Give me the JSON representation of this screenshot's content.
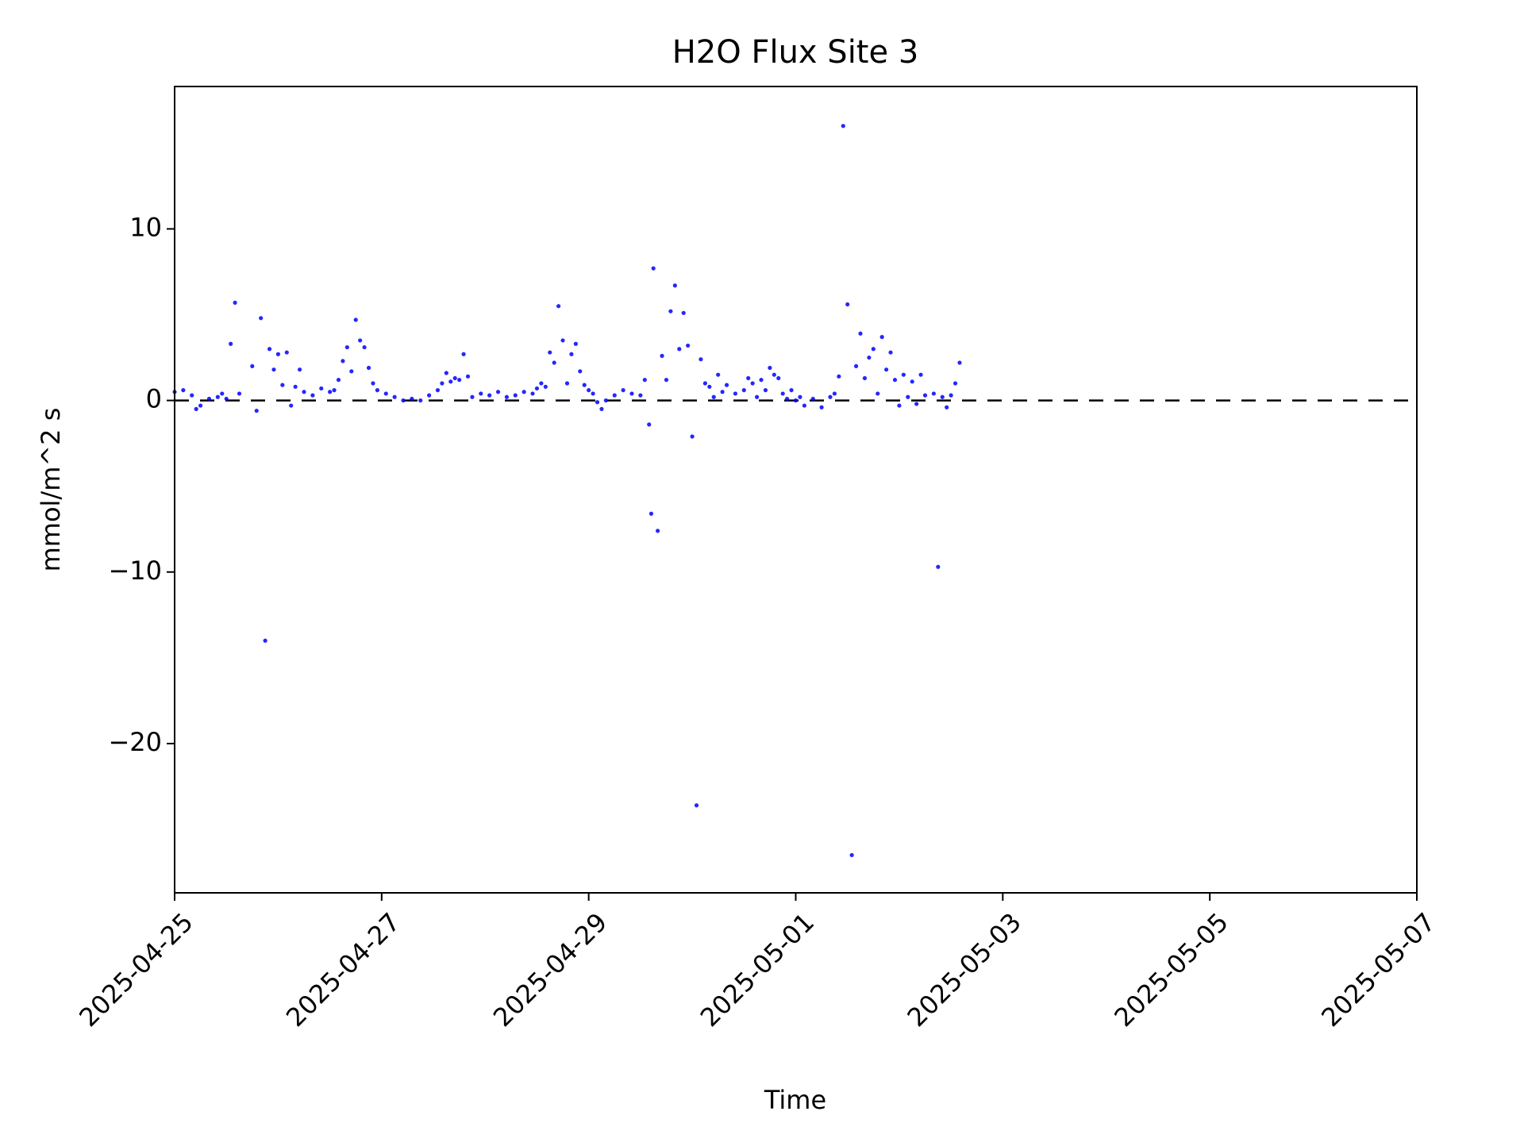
{
  "chart_data": {
    "type": "scatter",
    "title": "H2O Flux Site 3",
    "x_label": "Time",
    "y_label": "mmol/m^2 s",
    "xlim": [
      "2025-04-25T00:00",
      "2025-05-07T00:00"
    ],
    "xticks": [
      "2025-04-25",
      "2025-04-27",
      "2025-04-29",
      "2025-05-01",
      "2025-05-03",
      "2025-05-05",
      "2025-05-07"
    ],
    "ylim": [
      -28.7,
      18.3
    ],
    "yticks": [
      {
        "value": -20,
        "label": "−20"
      },
      {
        "value": -10,
        "label": "−10"
      },
      0,
      10
    ],
    "hline": 0,
    "hline_color": "#000000",
    "grid": false,
    "series": [
      {
        "color": "#0000ff",
        "x": [
          "2025-04-25T00:00",
          "2025-04-25T02:00",
          "2025-04-25T04:00",
          "2025-04-25T05:00",
          "2025-04-25T06:00",
          "2025-04-25T08:00",
          "2025-04-25T10:00",
          "2025-04-25T11:00",
          "2025-04-25T12:00",
          "2025-04-25T13:00",
          "2025-04-25T14:00",
          "2025-04-25T15:00",
          "2025-04-25T18:00",
          "2025-04-25T19:00",
          "2025-04-25T20:00",
          "2025-04-25T21:00",
          "2025-04-25T22:00",
          "2025-04-25T23:00",
          "2025-04-26T00:00",
          "2025-04-26T01:00",
          "2025-04-26T02:00",
          "2025-04-26T03:00",
          "2025-04-26T04:00",
          "2025-04-26T05:00",
          "2025-04-26T06:00",
          "2025-04-26T08:00",
          "2025-04-26T10:00",
          "2025-04-26T12:00",
          "2025-04-26T13:00",
          "2025-04-26T14:00",
          "2025-04-26T15:00",
          "2025-04-26T16:00",
          "2025-04-26T17:00",
          "2025-04-26T18:00",
          "2025-04-26T19:00",
          "2025-04-26T20:00",
          "2025-04-26T21:00",
          "2025-04-26T22:00",
          "2025-04-26T23:00",
          "2025-04-27T01:00",
          "2025-04-27T03:00",
          "2025-04-27T05:00",
          "2025-04-27T07:00",
          "2025-04-27T09:00",
          "2025-04-27T11:00",
          "2025-04-27T13:00",
          "2025-04-27T14:00",
          "2025-04-27T15:00",
          "2025-04-27T16:00",
          "2025-04-27T17:00",
          "2025-04-27T18:00",
          "2025-04-27T19:00",
          "2025-04-27T20:00",
          "2025-04-27T21:00",
          "2025-04-27T23:00",
          "2025-04-28T01:00",
          "2025-04-28T03:00",
          "2025-04-28T05:00",
          "2025-04-28T07:00",
          "2025-04-28T09:00",
          "2025-04-28T11:00",
          "2025-04-28T12:00",
          "2025-04-28T13:00",
          "2025-04-28T14:00",
          "2025-04-28T15:00",
          "2025-04-28T16:00",
          "2025-04-28T17:00",
          "2025-04-28T18:00",
          "2025-04-28T19:00",
          "2025-04-28T20:00",
          "2025-04-28T21:00",
          "2025-04-28T22:00",
          "2025-04-28T23:00",
          "2025-04-29T00:00",
          "2025-04-29T01:00",
          "2025-04-29T02:00",
          "2025-04-29T03:00",
          "2025-04-29T04:00",
          "2025-04-29T06:00",
          "2025-04-29T08:00",
          "2025-04-29T10:00",
          "2025-04-29T12:00",
          "2025-04-29T13:00",
          "2025-04-29T14:00",
          "2025-04-29T14:30",
          "2025-04-29T15:00",
          "2025-04-29T16:00",
          "2025-04-29T17:00",
          "2025-04-29T18:00",
          "2025-04-29T19:00",
          "2025-04-29T20:00",
          "2025-04-29T21:00",
          "2025-04-29T22:00",
          "2025-04-29T23:00",
          "2025-04-30T00:00",
          "2025-04-30T01:00",
          "2025-04-30T02:00",
          "2025-04-30T03:00",
          "2025-04-30T04:00",
          "2025-04-30T05:00",
          "2025-04-30T06:00",
          "2025-04-30T07:00",
          "2025-04-30T08:00",
          "2025-04-30T10:00",
          "2025-04-30T12:00",
          "2025-04-30T13:00",
          "2025-04-30T14:00",
          "2025-04-30T15:00",
          "2025-04-30T16:00",
          "2025-04-30T17:00",
          "2025-04-30T18:00",
          "2025-04-30T19:00",
          "2025-04-30T20:00",
          "2025-04-30T21:00",
          "2025-04-30T22:00",
          "2025-04-30T23:00",
          "2025-05-01T00:00",
          "2025-05-01T01:00",
          "2025-05-01T02:00",
          "2025-05-01T04:00",
          "2025-05-01T06:00",
          "2025-05-01T08:00",
          "2025-05-01T09:00",
          "2025-05-01T10:00",
          "2025-05-01T11:00",
          "2025-05-01T12:00",
          "2025-05-01T13:00",
          "2025-05-01T14:00",
          "2025-05-01T15:00",
          "2025-05-01T16:00",
          "2025-05-01T17:00",
          "2025-05-01T18:00",
          "2025-05-01T19:00",
          "2025-05-01T20:00",
          "2025-05-01T21:00",
          "2025-05-01T22:00",
          "2025-05-01T23:00",
          "2025-05-02T00:00",
          "2025-05-02T01:00",
          "2025-05-02T02:00",
          "2025-05-02T03:00",
          "2025-05-02T04:00",
          "2025-05-02T05:00",
          "2025-05-02T06:00",
          "2025-05-02T08:00",
          "2025-05-02T09:00",
          "2025-05-02T10:00",
          "2025-05-02T11:00",
          "2025-05-02T12:00",
          "2025-05-02T13:00",
          "2025-05-02T14:00"
        ],
        "values": [
          0.5,
          0.6,
          0.3,
          -0.5,
          -0.3,
          0.1,
          0.2,
          0.4,
          0.1,
          3.3,
          5.7,
          0.4,
          2.0,
          -0.6,
          4.8,
          -14.0,
          3.0,
          1.8,
          2.7,
          0.9,
          2.8,
          -0.3,
          0.8,
          1.8,
          0.5,
          0.3,
          0.7,
          0.5,
          0.6,
          1.2,
          2.3,
          3.1,
          1.7,
          4.7,
          3.5,
          3.1,
          1.9,
          1.0,
          0.6,
          0.4,
          0.2,
          0.0,
          0.1,
          0.0,
          0.3,
          0.6,
          1.0,
          1.6,
          1.1,
          1.3,
          1.2,
          2.7,
          1.4,
          0.2,
          0.4,
          0.3,
          0.5,
          0.2,
          0.3,
          0.5,
          0.4,
          0.7,
          1.0,
          0.8,
          2.8,
          2.2,
          5.5,
          3.5,
          1.0,
          2.7,
          3.3,
          1.7,
          0.9,
          0.6,
          0.4,
          -0.1,
          -0.5,
          0.0,
          0.3,
          0.6,
          0.4,
          0.3,
          1.2,
          -1.4,
          -6.6,
          7.7,
          -7.6,
          2.6,
          1.2,
          5.2,
          6.7,
          3.0,
          5.1,
          3.2,
          -2.1,
          -23.6,
          2.4,
          1.0,
          0.8,
          0.2,
          1.5,
          0.5,
          0.9,
          0.4,
          0.6,
          1.3,
          1.0,
          0.2,
          1.2,
          0.6,
          1.9,
          1.5,
          1.3,
          0.4,
          0.1,
          0.6,
          0.0,
          0.2,
          -0.3,
          0.1,
          -0.4,
          0.2,
          0.4,
          1.4,
          16.0,
          5.6,
          -26.5,
          2.0,
          3.9,
          1.3,
          2.5,
          3.0,
          0.4,
          3.7,
          1.8,
          2.8,
          1.2,
          -0.3,
          1.5,
          0.2,
          1.1,
          -0.2,
          1.5,
          0.3,
          0.4,
          -9.7,
          0.2,
          -0.4,
          0.3,
          1.0,
          2.2
        ]
      }
    ]
  }
}
